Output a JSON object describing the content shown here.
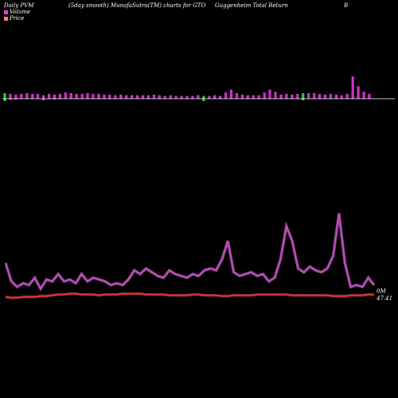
{
  "header": {
    "daily_title": "Daily PVM",
    "avg_title": "(5day smooth) MunafaSutra(TM) charts for GTO",
    "fund_name": "Guggenheim Total Return",
    "suffix": "B"
  },
  "legend": [
    {
      "label": "Volume",
      "color": "#e040e0"
    },
    {
      "label": "Price",
      "color": "#ff3030"
    }
  ],
  "chart_data": [
    {
      "type": "bar",
      "title": "",
      "values_up": [
        8,
        7,
        6,
        7,
        8,
        7,
        7,
        5,
        7,
        6,
        7,
        9,
        8,
        7,
        7,
        8,
        7,
        7,
        6,
        6,
        5,
        6,
        5,
        5,
        5,
        5,
        5,
        6,
        5,
        4,
        5,
        4,
        4,
        4,
        4,
        5,
        4,
        4,
        5,
        4,
        9,
        13,
        8,
        6,
        5,
        5,
        5,
        9,
        13,
        10,
        6,
        7,
        6,
        7,
        8,
        8,
        8,
        7,
        6,
        7,
        6,
        5,
        7,
        32,
        18,
        10,
        7
      ],
      "colors": [
        "green",
        "magenta",
        "magenta",
        "magenta",
        "magenta",
        "magenta",
        "magenta",
        "magenta",
        "magenta",
        "magenta",
        "magenta",
        "magenta",
        "magenta",
        "magenta",
        "magenta",
        "magenta",
        "magenta",
        "magenta",
        "magenta",
        "magenta",
        "magenta",
        "magenta",
        "magenta",
        "magenta",
        "magenta",
        "magenta",
        "magenta",
        "magenta",
        "magenta",
        "magenta",
        "magenta",
        "magenta",
        "magenta",
        "magenta",
        "magenta",
        "magenta",
        "green",
        "magenta",
        "magenta",
        "magenta",
        "magenta",
        "magenta",
        "magenta",
        "magenta",
        "magenta",
        "magenta",
        "magenta",
        "magenta",
        "magenta",
        "magenta",
        "magenta",
        "magenta",
        "magenta",
        "magenta",
        "green",
        "magenta",
        "magenta",
        "magenta",
        "magenta",
        "magenta",
        "magenta",
        "magenta",
        "magenta",
        "magenta",
        "magenta",
        "magenta",
        "magenta"
      ],
      "values_down": [
        3,
        1,
        1,
        0,
        0,
        0,
        0,
        2,
        0,
        1,
        0,
        0,
        0,
        0,
        0,
        0,
        0,
        0,
        0,
        0,
        0,
        0,
        0,
        0,
        0,
        0,
        0,
        0,
        0,
        0,
        0,
        0,
        0,
        0,
        0,
        0,
        3,
        0,
        0,
        0,
        0,
        0,
        0,
        0,
        0,
        0,
        0,
        0,
        0,
        0,
        0,
        0,
        0,
        0,
        2,
        0,
        0,
        0,
        0,
        0,
        0,
        0,
        0,
        0,
        0,
        0,
        0
      ],
      "down_colors": [
        "green",
        "green",
        "magenta",
        "magenta",
        "magenta",
        "magenta",
        "magenta",
        "magenta",
        "magenta",
        "magenta",
        "magenta",
        "magenta",
        "magenta",
        "magenta",
        "magenta",
        "magenta",
        "magenta",
        "magenta",
        "magenta",
        "magenta",
        "magenta",
        "magenta",
        "magenta",
        "magenta",
        "magenta",
        "magenta",
        "magenta",
        "magenta",
        "magenta",
        "magenta",
        "magenta",
        "magenta",
        "magenta",
        "magenta",
        "magenta",
        "magenta",
        "green",
        "magenta",
        "magenta",
        "magenta",
        "magenta",
        "magenta",
        "magenta",
        "magenta",
        "magenta",
        "magenta",
        "magenta",
        "magenta",
        "magenta",
        "magenta",
        "magenta",
        "magenta",
        "magenta",
        "magenta",
        "green",
        "magenta",
        "magenta",
        "magenta",
        "magenta",
        "magenta",
        "magenta",
        "magenta",
        "magenta",
        "magenta",
        "magenta",
        "magenta",
        "magenta"
      ]
    },
    {
      "type": "line",
      "title": "",
      "series": [
        {
          "name": "Volume",
          "color": "#cc44cc",
          "values": [
            18,
            8,
            5,
            7,
            6,
            10,
            4,
            9,
            8,
            12,
            8,
            9,
            7,
            12,
            8,
            10,
            9,
            8,
            6,
            7,
            6,
            9,
            14,
            12,
            15,
            13,
            11,
            10,
            14,
            12,
            11,
            10,
            12,
            11,
            14,
            15,
            14,
            20,
            30,
            13,
            11,
            12,
            13,
            11,
            12,
            8,
            10,
            20,
            38,
            30,
            15,
            13,
            16,
            14,
            13,
            15,
            22,
            45,
            18,
            5,
            6,
            5,
            10,
            6
          ]
        },
        {
          "name": "Price",
          "color": "#ff3030",
          "values": [
            5,
            4,
            4,
            5,
            5,
            5,
            6,
            6,
            7,
            8,
            8,
            9,
            9,
            8,
            8,
            8,
            7,
            8,
            8,
            8,
            9,
            9,
            9,
            9,
            8,
            8,
            8,
            8,
            7,
            7,
            7,
            7,
            8,
            8,
            7,
            7,
            7,
            6,
            6,
            7,
            7,
            7,
            7,
            8,
            8,
            8,
            8,
            8,
            8,
            7,
            7,
            7,
            7,
            7,
            7,
            7,
            6,
            6,
            6,
            7,
            7,
            7,
            8,
            8
          ]
        }
      ],
      "labels": {
        "volume_end": "0M",
        "price_end": "47.41"
      }
    }
  ]
}
